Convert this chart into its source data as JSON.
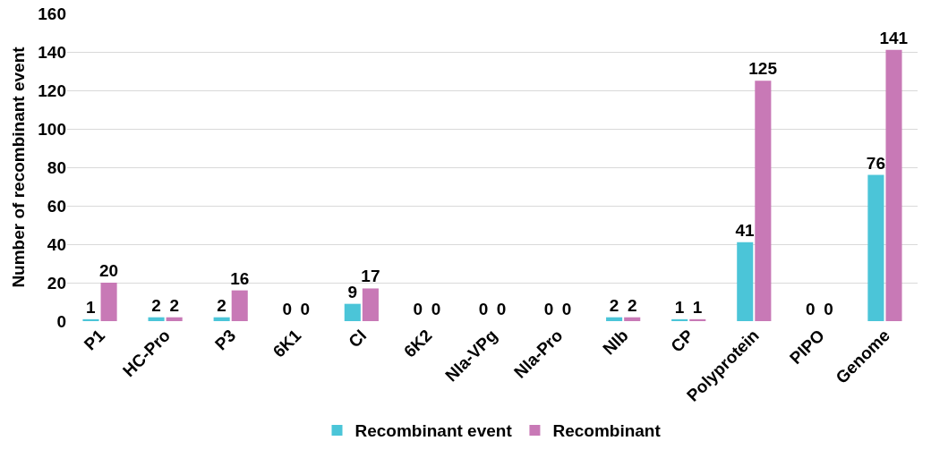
{
  "chart_data": {
    "type": "bar",
    "ylabel": "Number of recombinant event",
    "categories": [
      "P1",
      "HC-Pro",
      "P3",
      "6K1",
      "CI",
      "6K2",
      "NIa-VPg",
      "NIa-Pro",
      "NIb",
      "CP",
      "Polyprotein",
      "PIPO",
      "Genome"
    ],
    "series": [
      {
        "name": "Recombinant event",
        "color": "#4bc5d8",
        "values": [
          1,
          2,
          2,
          0,
          9,
          0,
          0,
          0,
          2,
          1,
          41,
          0,
          76
        ]
      },
      {
        "name": "Recombinant",
        "color": "#c879b6",
        "values": [
          20,
          2,
          16,
          0,
          17,
          0,
          0,
          0,
          2,
          1,
          125,
          0,
          141
        ]
      }
    ],
    "ylim": [
      0,
      160
    ],
    "yticks": [
      0,
      20,
      40,
      60,
      80,
      100,
      120,
      140,
      160
    ],
    "grid": "y",
    "legend": "bottom",
    "data_labels": true
  }
}
